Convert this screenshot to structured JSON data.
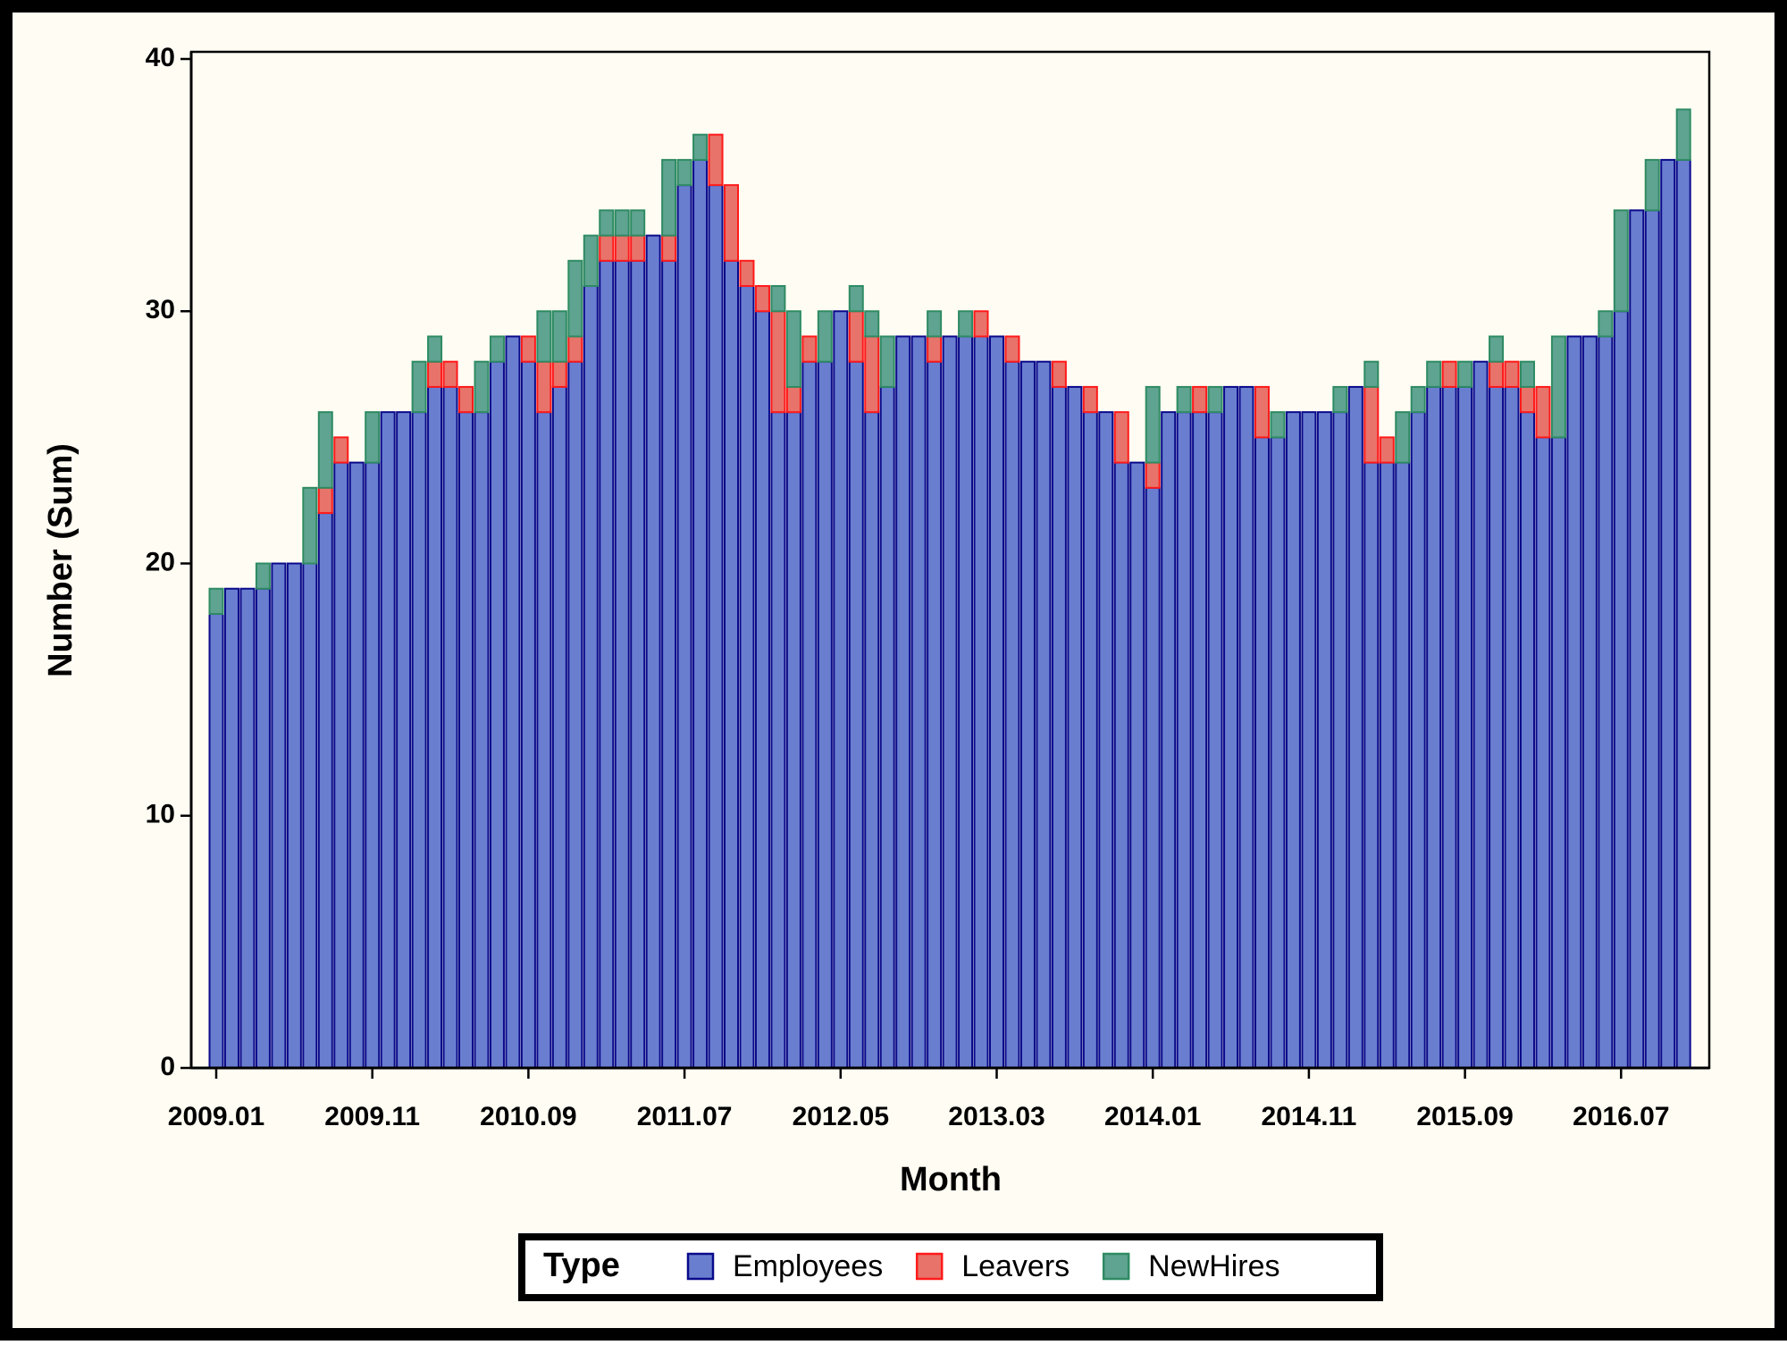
{
  "chart_data": {
    "type": "stacked_bar",
    "x_label": "Month",
    "y_label": "Number (Sum)",
    "legend_title": "Type",
    "legend_position": "bottom",
    "ylim": [
      0,
      40
    ],
    "yticks": [
      0,
      10,
      20,
      30,
      40
    ],
    "grid": false,
    "categories": [
      "2009.01",
      null,
      null,
      null,
      null,
      null,
      null,
      null,
      null,
      null,
      "2009.11",
      null,
      null,
      null,
      null,
      null,
      null,
      null,
      null,
      null,
      "2010.09",
      null,
      null,
      null,
      null,
      null,
      null,
      null,
      null,
      null,
      "2011.07",
      null,
      null,
      null,
      null,
      null,
      null,
      null,
      null,
      null,
      "2012.05",
      null,
      null,
      null,
      null,
      null,
      null,
      null,
      null,
      null,
      "2013.03",
      null,
      null,
      null,
      null,
      null,
      null,
      null,
      null,
      null,
      "2014.01",
      null,
      null,
      null,
      null,
      null,
      null,
      null,
      null,
      null,
      "2014.11",
      null,
      null,
      null,
      null,
      null,
      null,
      null,
      null,
      null,
      "2015.09",
      null,
      null,
      null,
      null,
      null,
      null,
      null,
      null,
      null,
      "2016.07",
      null,
      null,
      null,
      null
    ],
    "series": [
      {
        "name": "Employees",
        "color": "#6a7ed0",
        "edgecolor": "#0a0a8a",
        "values": [
          18,
          19,
          19,
          19,
          20,
          20,
          20,
          22,
          24,
          24,
          24,
          26,
          26,
          26,
          27,
          27,
          26,
          26,
          28,
          29,
          28,
          26,
          27,
          28,
          31,
          32,
          32,
          32,
          33,
          32,
          35,
          36,
          35,
          32,
          31,
          30,
          26,
          26,
          28,
          28,
          30,
          28,
          26,
          27,
          29,
          29,
          28,
          29,
          29,
          29,
          29,
          28,
          28,
          28,
          27,
          27,
          26,
          26,
          24,
          24,
          23,
          26,
          26,
          26,
          26,
          27,
          27,
          25,
          25,
          26,
          26,
          26,
          26,
          27,
          24,
          24,
          24,
          26,
          27,
          27,
          27,
          28,
          27,
          27,
          26,
          25,
          25,
          29,
          29,
          29,
          30,
          34,
          34,
          36,
          36
        ]
      },
      {
        "name": "Leavers",
        "color": "#e8736a",
        "edgecolor": "#ff1a1a",
        "values": [
          0,
          0,
          0,
          0,
          0,
          0,
          0,
          1,
          1,
          0,
          0,
          0,
          0,
          0,
          1,
          1,
          1,
          0,
          0,
          0,
          1,
          2,
          1,
          1,
          0,
          1,
          1,
          1,
          0,
          1,
          0,
          0,
          2,
          3,
          1,
          1,
          4,
          1,
          1,
          0,
          0,
          2,
          3,
          0,
          0,
          0,
          1,
          0,
          0,
          1,
          0,
          1,
          0,
          0,
          1,
          0,
          1,
          0,
          2,
          0,
          1,
          0,
          0,
          1,
          0,
          0,
          0,
          2,
          0,
          0,
          0,
          0,
          0,
          0,
          3,
          1,
          0,
          0,
          0,
          1,
          0,
          0,
          1,
          1,
          1,
          2,
          0,
          0,
          0,
          0,
          0,
          0,
          0,
          0,
          0
        ]
      },
      {
        "name": "NewHires",
        "color": "#5fa391",
        "edgecolor": "#2e8b63",
        "values": [
          1,
          0,
          0,
          1,
          0,
          0,
          3,
          3,
          0,
          0,
          2,
          0,
          0,
          2,
          1,
          0,
          0,
          2,
          1,
          0,
          0,
          2,
          2,
          3,
          2,
          1,
          1,
          1,
          0,
          3,
          1,
          1,
          0,
          0,
          0,
          0,
          1,
          3,
          0,
          2,
          0,
          1,
          1,
          2,
          0,
          0,
          1,
          0,
          1,
          0,
          0,
          0,
          0,
          0,
          0,
          0,
          0,
          0,
          0,
          0,
          3,
          0,
          1,
          0,
          1,
          0,
          0,
          0,
          1,
          0,
          0,
          0,
          1,
          0,
          1,
          0,
          2,
          1,
          1,
          0,
          1,
          0,
          1,
          0,
          1,
          0,
          4,
          0,
          0,
          1,
          4,
          0,
          2,
          0,
          2
        ]
      }
    ]
  }
}
